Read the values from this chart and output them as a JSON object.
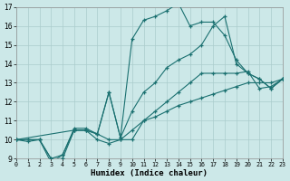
{
  "xlabel": "Humidex (Indice chaleur)",
  "bg_color": "#cce8e8",
  "grid_color": "#aacccc",
  "line_color": "#1a7070",
  "xlim": [
    0,
    23
  ],
  "ylim": [
    9,
    17
  ],
  "xticks": [
    0,
    1,
    2,
    3,
    4,
    5,
    6,
    7,
    8,
    9,
    10,
    11,
    12,
    13,
    14,
    15,
    16,
    17,
    18,
    19,
    20,
    21,
    22,
    23
  ],
  "yticks": [
    9,
    10,
    11,
    12,
    13,
    14,
    15,
    16,
    17
  ],
  "curve_top": {
    "x": [
      0,
      1,
      2,
      3,
      4,
      5,
      6,
      7,
      8,
      9,
      10,
      11,
      12,
      13,
      14,
      15,
      16,
      17,
      18,
      19,
      20,
      21,
      22,
      23
    ],
    "y": [
      10,
      9.9,
      10,
      8.8,
      9.2,
      10.6,
      10.6,
      10.3,
      12.5,
      10.1,
      15.3,
      16.3,
      16.5,
      16.8,
      17.2,
      16.0,
      16.2,
      16.2,
      15.5,
      14.2,
      13.5,
      13.2,
      12.7,
      13.2
    ]
  },
  "curve_mid_high": {
    "x": [
      0,
      5,
      6,
      7,
      8,
      9,
      10,
      11,
      12,
      13,
      14,
      15,
      16,
      17,
      18,
      19,
      20,
      21,
      22,
      23
    ],
    "y": [
      10,
      10.5,
      10.5,
      10.3,
      12.5,
      10.1,
      11.5,
      12.5,
      13.0,
      13.8,
      14.2,
      14.5,
      15.0,
      16.0,
      16.5,
      14.0,
      13.5,
      13.2,
      12.7,
      13.2
    ]
  },
  "curve_mid_low": {
    "x": [
      0,
      1,
      2,
      3,
      4,
      5,
      6,
      7,
      8,
      9,
      10,
      11,
      12,
      13,
      14,
      15,
      16,
      17,
      18,
      19,
      20,
      21,
      22,
      23
    ],
    "y": [
      10,
      10,
      10,
      9,
      9.2,
      10.5,
      10.5,
      10.3,
      10,
      10,
      10.5,
      11,
      11.5,
      12,
      12.5,
      13,
      13.5,
      13.5,
      13.5,
      13.5,
      13.6,
      12.7,
      12.8,
      13.2
    ]
  },
  "curve_bottom": {
    "x": [
      0,
      1,
      2,
      3,
      4,
      5,
      6,
      7,
      8,
      9,
      10,
      11,
      12,
      13,
      14,
      15,
      16,
      17,
      18,
      19,
      20,
      21,
      22,
      23
    ],
    "y": [
      10,
      10,
      10,
      9,
      9,
      10.5,
      10.5,
      10,
      9.8,
      10,
      10,
      11,
      11.2,
      11.5,
      11.8,
      12,
      12.2,
      12.4,
      12.6,
      12.8,
      13,
      13,
      13,
      13.2
    ]
  }
}
